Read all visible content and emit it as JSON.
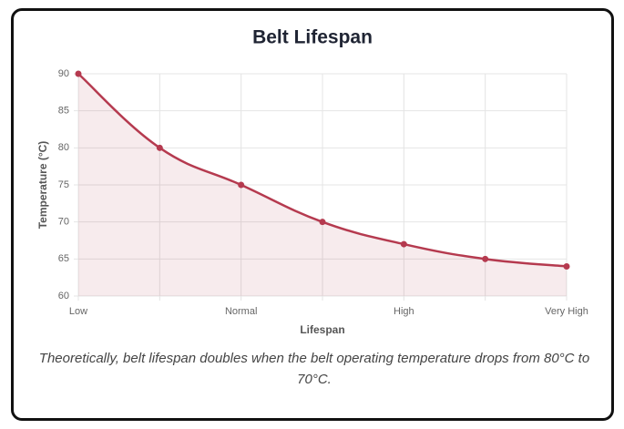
{
  "chart_data": {
    "type": "line",
    "title": "Belt Lifespan",
    "x_label": "Lifespan",
    "y_label": "Temperature (°C)",
    "categories": [
      "Low",
      null,
      "Normal",
      null,
      "High",
      null,
      "Very High"
    ],
    "series": [
      {
        "name": "Temperature",
        "color": "#b53a4f",
        "values": [
          90,
          80,
          75,
          70,
          67,
          65,
          64
        ]
      }
    ],
    "ylim": [
      60,
      90
    ],
    "yticks": [
      60,
      65,
      70,
      75,
      80,
      85,
      90
    ],
    "grid": true,
    "fill": true,
    "caption": "Theoretically, belt lifespan doubles when the belt operating temperature drops from 80°C to 70°C."
  }
}
